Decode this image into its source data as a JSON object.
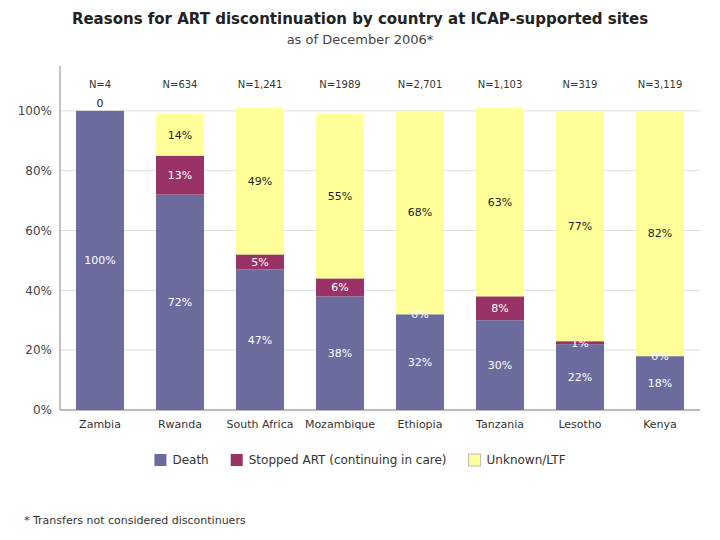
{
  "chart_data": {
    "type": "bar",
    "stacked": true,
    "title": "Reasons for ART discontinuation by country at ICAP-supported sites",
    "subtitle": "as of December 2006*",
    "footnote": "* Transfers not considered discontinuers",
    "categories": [
      "Zambia",
      "Rwanda",
      "South Africa",
      "Mozambique",
      "Ethiopia",
      "Tanzania",
      "Lesotho",
      "Kenya"
    ],
    "annotations": [
      "N=4",
      "N=634",
      "N=1,241",
      "N=1989",
      "N=2,701",
      "N=1,103",
      "N=319",
      "N=3,119"
    ],
    "series": [
      {
        "name": "Death",
        "color": "#6B6B9E",
        "values": [
          100,
          72,
          47,
          38,
          32,
          30,
          22,
          18
        ],
        "value_labels": [
          "100%",
          "72%",
          "47%",
          "38%",
          "32%",
          "30%",
          "22%",
          "18%"
        ]
      },
      {
        "name": "Stopped ART (continuing in care)",
        "color": "#993366",
        "values": [
          0,
          13,
          5,
          6,
          0,
          8,
          1,
          0
        ],
        "value_labels": [
          "0",
          "13%",
          "5%",
          "6%",
          "0%",
          "8%",
          "1%",
          "0%"
        ]
      },
      {
        "name": "Unknown/LTF",
        "color": "#FFFF99",
        "values": [
          0,
          14,
          49,
          55,
          68,
          63,
          77,
          82
        ],
        "value_labels": [
          null,
          "14%",
          "49%",
          "55%",
          "68%",
          "63%",
          "77%",
          "82%"
        ]
      }
    ],
    "ylim": [
      0,
      115
    ],
    "yticks": [
      {
        "value": 0,
        "label": "0%"
      },
      {
        "value": 20,
        "label": "20%"
      },
      {
        "value": 40,
        "label": "40%"
      },
      {
        "value": 60,
        "label": "60%"
      },
      {
        "value": 80,
        "label": "80%"
      },
      {
        "value": 100,
        "label": "100%"
      }
    ],
    "grid": true,
    "legend": "bottom",
    "data_labels": true
  }
}
